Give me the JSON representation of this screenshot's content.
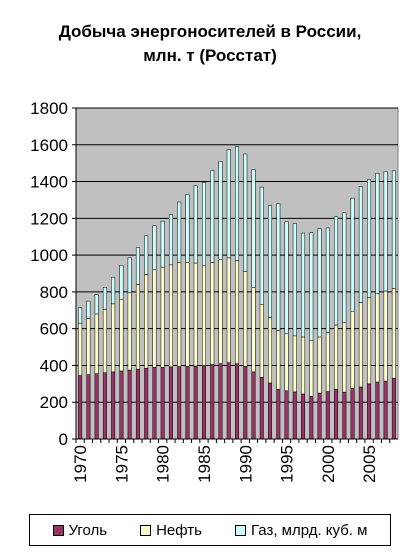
{
  "chart_data": {
    "type": "bar",
    "stacked": true,
    "title": "Добыча энергоносителей в России, млн. т (Росстат)",
    "x": [
      1970,
      1971,
      1972,
      1973,
      1974,
      1975,
      1976,
      1977,
      1978,
      1979,
      1980,
      1981,
      1982,
      1983,
      1984,
      1985,
      1986,
      1987,
      1988,
      1989,
      1990,
      1991,
      1992,
      1993,
      1994,
      1995,
      1996,
      1997,
      1998,
      1999,
      2000,
      2001,
      2002,
      2003,
      2004,
      2005,
      2006,
      2007,
      2008
    ],
    "x_tick_labels": [
      "1970",
      "1975",
      "1980",
      "1985",
      "1990",
      "1995",
      "2000",
      "2005"
    ],
    "ylim": [
      0,
      1800
    ],
    "y_ticks": [
      "0",
      "200",
      "400",
      "600",
      "800",
      "1000",
      "1200",
      "1400",
      "1600",
      "1800"
    ],
    "grid": true,
    "legend_position": "bottom",
    "series": [
      {
        "name": "Уголь",
        "color": "#993366",
        "values": [
          345,
          350,
          355,
          360,
          365,
          370,
          375,
          380,
          385,
          390,
          390,
          392,
          394,
          395,
          397,
          400,
          405,
          410,
          415,
          410,
          395,
          365,
          335,
          305,
          270,
          262,
          256,
          245,
          232,
          250,
          258,
          270,
          255,
          275,
          283,
          300,
          310,
          315,
          330
        ]
      },
      {
        "name": "Нефть",
        "color": "#ffffcc",
        "values": [
          285,
          305,
          325,
          345,
          370,
          390,
          420,
          460,
          510,
          530,
          545,
          555,
          565,
          565,
          560,
          545,
          555,
          565,
          570,
          560,
          515,
          460,
          395,
          355,
          320,
          310,
          305,
          310,
          305,
          305,
          320,
          350,
          380,
          420,
          460,
          470,
          480,
          490,
          488
        ]
      },
      {
        "name": "Газ, млрд. куб. м",
        "color": "#ccffff",
        "values": [
          85,
          95,
          105,
          120,
          145,
          185,
          190,
          200,
          210,
          240,
          250,
          275,
          330,
          370,
          420,
          450,
          500,
          535,
          590,
          620,
          640,
          640,
          640,
          610,
          690,
          610,
          610,
          565,
          585,
          590,
          570,
          590,
          595,
          615,
          630,
          640,
          655,
          650,
          640
        ]
      }
    ]
  },
  "legend": {
    "coal": "Уголь",
    "oil": "Нефть",
    "gas": "Газ, млрд. куб. м"
  }
}
